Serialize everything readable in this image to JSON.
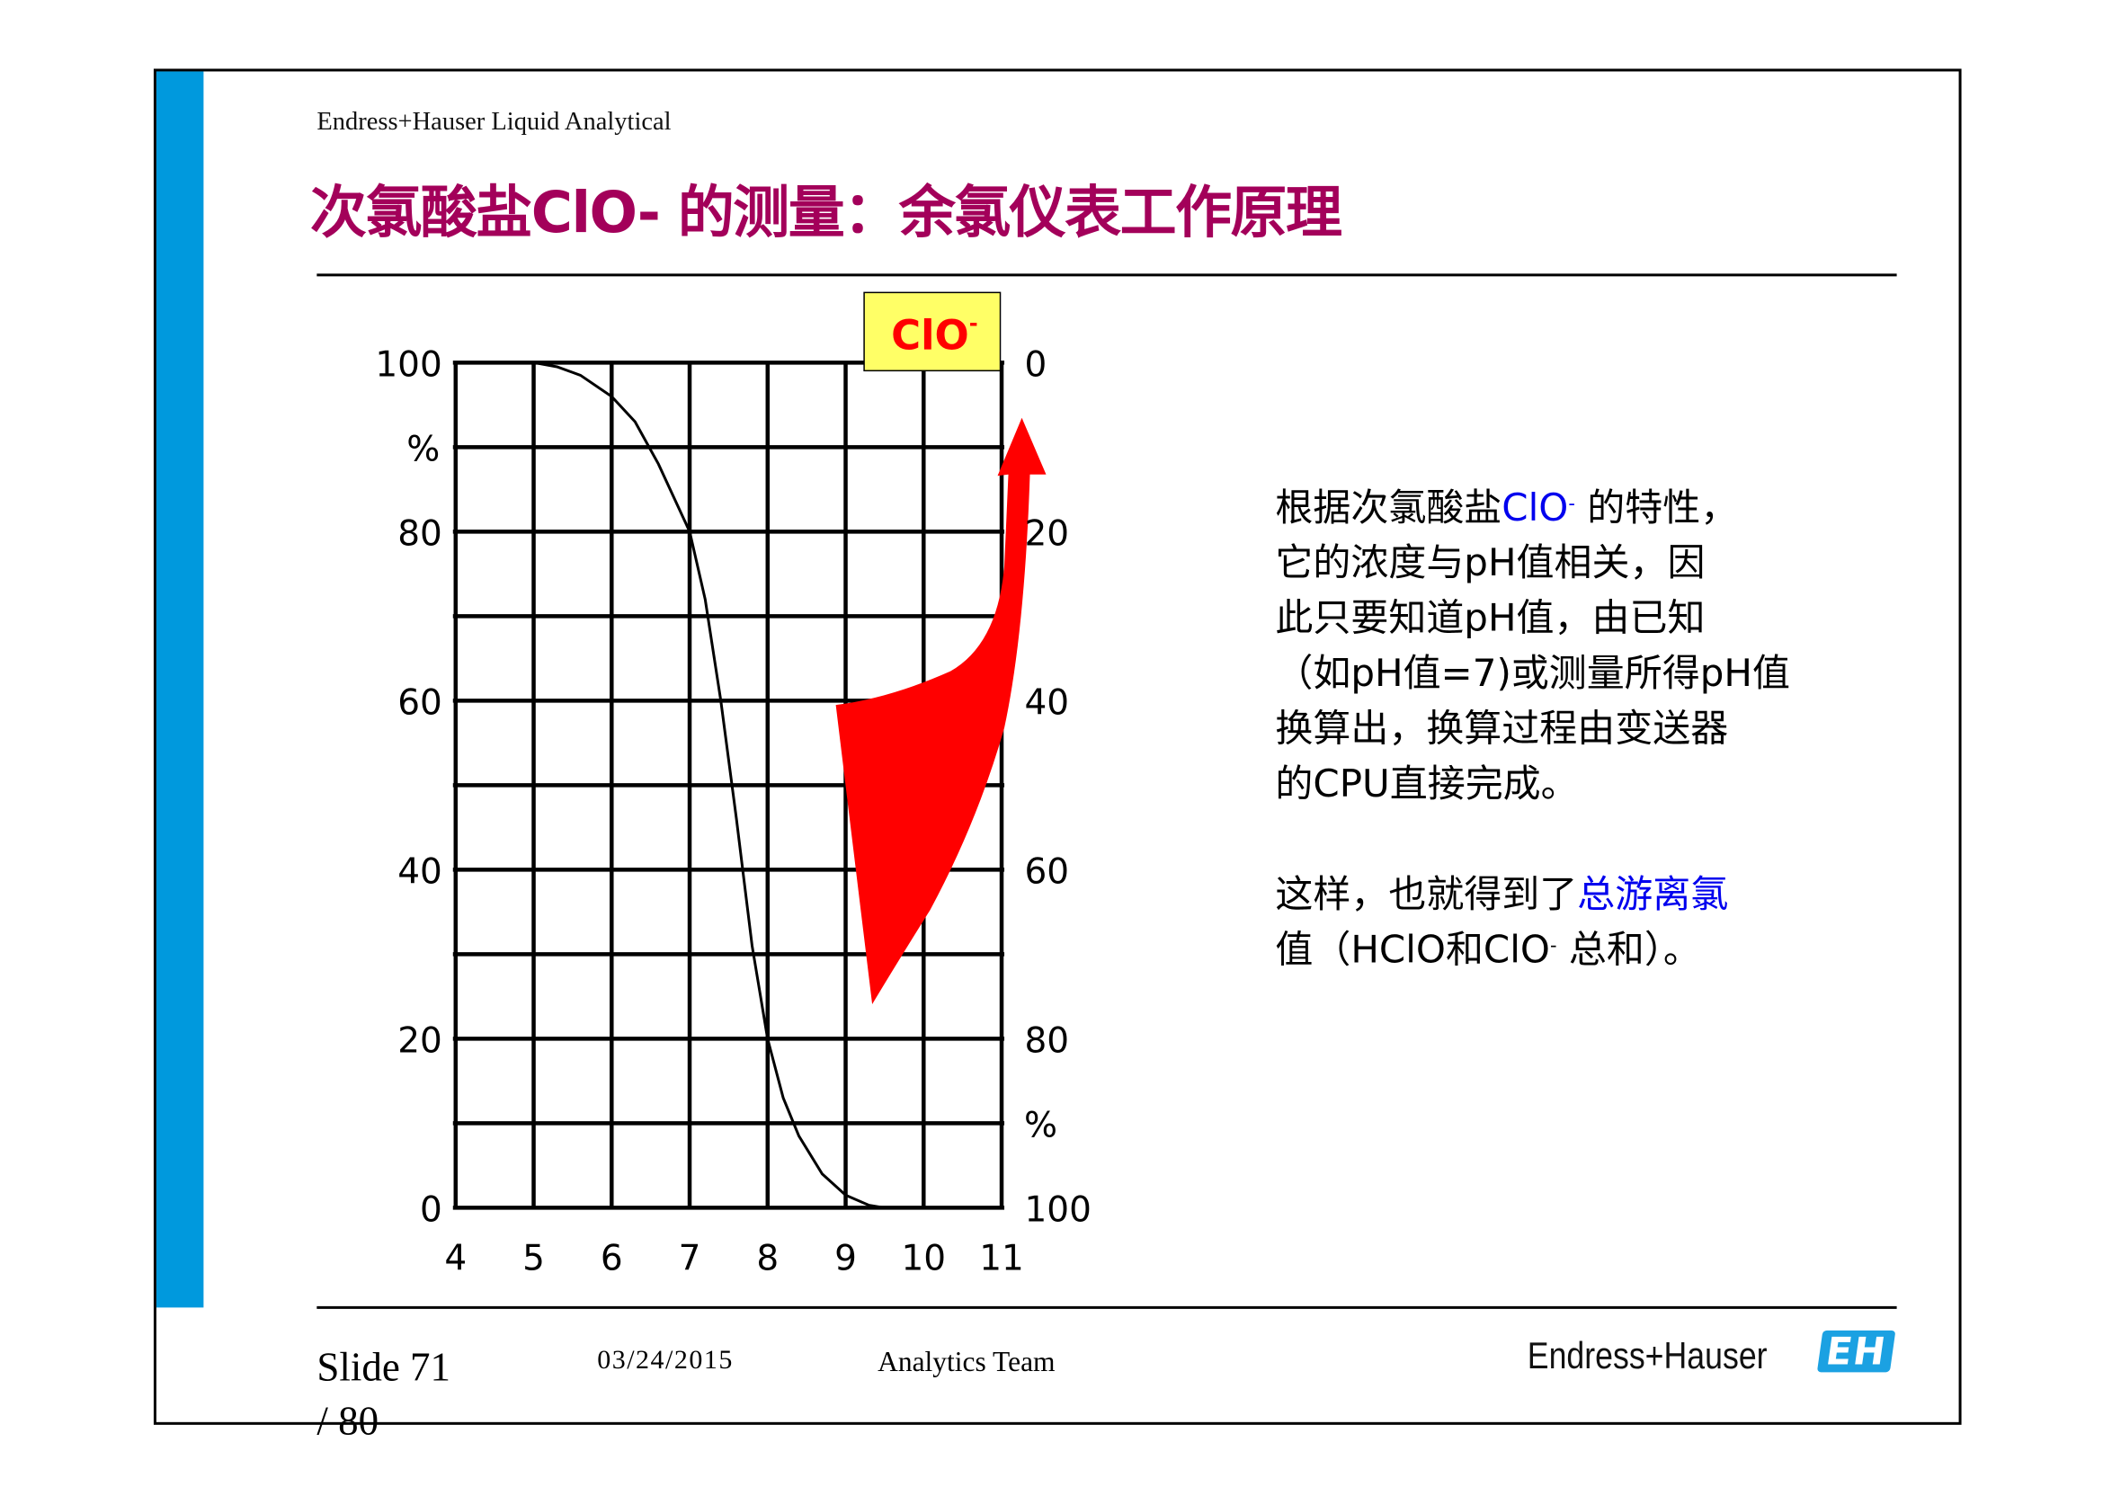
{
  "header": {
    "subtitle": "Endress+Hauser Liquid Analytical",
    "title": "次氯酸盐ClO- 的测量：余氯仪表工作原理"
  },
  "colors": {
    "accent_bar": "#0099dd",
    "title": "#a3005a",
    "arrow": "#ff0000",
    "label_box": "#ffff66",
    "label_text": "#ff0000",
    "highlight_text": "#0000ee",
    "logo": "#1ba1e2"
  },
  "chart_data": {
    "type": "line",
    "label_box": "ClO-",
    "label_box_main": "ClO",
    "label_box_sup": "-",
    "xlim": [
      4,
      11
    ],
    "ylim": [
      0,
      100
    ],
    "x_ticks": [
      "4",
      "5",
      "6",
      "7",
      "8",
      "9",
      "10",
      "11"
    ],
    "y_ticks_left": [
      "0",
      "20",
      "40",
      "60",
      "80",
      "100"
    ],
    "y_unit_left": "%",
    "y_ticks_right": [
      "100",
      "80",
      "60",
      "40",
      "20",
      "0"
    ],
    "y_unit_right": "%",
    "grid": true,
    "series": [
      {
        "x": [
          4.7,
          5.0,
          5.3,
          5.6,
          6.0,
          6.3,
          6.6,
          6.8,
          7.0,
          7.2,
          7.4,
          7.6,
          7.8,
          8.0,
          8.2,
          8.4,
          8.7,
          9.0,
          9.3,
          9.5
        ],
        "y": [
          100,
          100,
          99.5,
          98.5,
          96,
          93,
          88,
          84,
          80,
          72,
          60,
          46,
          31,
          20,
          13,
          8.5,
          4,
          1.5,
          0.3,
          0
        ]
      }
    ],
    "annotation": "red curved arrow pointing up toward right axis"
  },
  "body": {
    "p1_l1_a": "根据次氯酸盐",
    "p1_l1_b": "ClO",
    "p1_l1_sup": "-",
    "p1_l1_c": " 的特性，",
    "p1_l2": "它的浓度与pH值相关，因",
    "p1_l3": "此只要知道pH值，由已知",
    "p1_l4": "（如pH值=7)或测量所得pH值",
    "p1_l5": "换算出，换算过程由变送器",
    "p1_l6": "的CPU直接完成。",
    "p2_l1_a": "这样，也就得到了",
    "p2_l1_b": "总游离氯",
    "p2_l2_a": "值（HClO和ClO",
    "p2_l2_sup": "-",
    "p2_l2_b": " 总和）。"
  },
  "footer": {
    "slide": "Slide 71",
    "total": "/ 80",
    "date": "03/24/2015",
    "team": "Analytics Team",
    "logo_text": "Endress+Hauser",
    "logo_mark": "EH"
  }
}
